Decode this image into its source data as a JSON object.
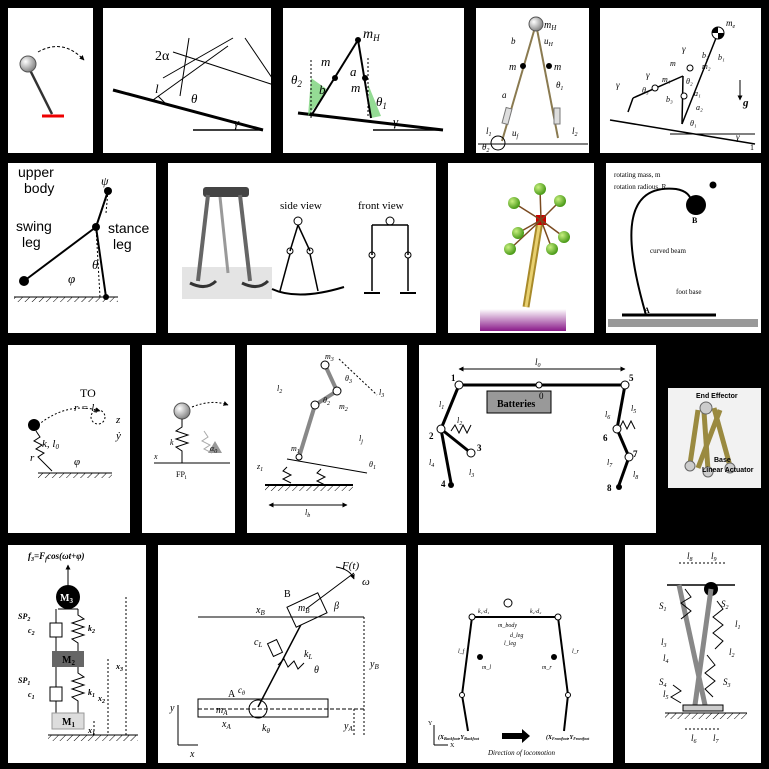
{
  "p2": {
    "angle_2a": "2α",
    "l": "l",
    "theta": "θ",
    "gamma": "γ"
  },
  "p3": {
    "mH": "m",
    "mH_sub": "H",
    "m_left": "m",
    "m_right": "m",
    "a": "a",
    "b": "b",
    "th2": "θ",
    "th2_sub": "2",
    "th1": "θ",
    "th1_sub": "1",
    "gamma": "γ"
  },
  "p4": {
    "mH": "m",
    "mH_sub": "H",
    "m_left": "m",
    "m_right": "m",
    "b": "b",
    "a": "a",
    "uH": "u",
    "uH_sub": "H",
    "th1": "θ",
    "th1_sub": "1",
    "l1": "l",
    "l1_sub": "1",
    "l2": "l",
    "l2_sub": "2",
    "uf": "u",
    "uf_sub": "f",
    "th2": "θ",
    "th2_sub": "2"
  },
  "p5": {
    "m_e": "m",
    "m_e_sub": "e",
    "g": "g",
    "gamma": "γ",
    "labels": [
      "θ₃",
      "θ₂",
      "m₂",
      "m₁",
      "b₃",
      "b₂",
      "a₂",
      "a₁",
      "b₁",
      "θ₁",
      "γ",
      "γ",
      "γ",
      "γ",
      "m"
    ],
    "one": "1"
  },
  "p6": {
    "upper_body": "upper",
    "upper_body2": "body",
    "psi": "ψ",
    "swing": "swing",
    "swing2": "leg",
    "stance": "stance",
    "stance2": "leg",
    "theta": "θ",
    "phi": "φ"
  },
  "p7": {
    "side": "side view",
    "front": "front view"
  },
  "p9": {
    "rot_mass": "rotating mass, m",
    "rot_radius": "rotation radious, R",
    "B": "B",
    "beam": "curved beam",
    "foot": "foot base",
    "A": "A"
  },
  "p10": {
    "TO": "TO",
    "r_eq": "r = l",
    "r_eq_sub": "0",
    "k_l0": "k, l",
    "k_l0_sub": "0",
    "r": "r",
    "phi": "φ",
    "z": "z",
    "y": "ẏ"
  },
  "p11": {
    "k": "k",
    "alpha": "α",
    "alpha_sub": "0",
    "x": "x",
    "FP": "FP",
    "FP_sub": "i"
  },
  "p12": {
    "m3": "m",
    "m3_sub": "3",
    "th3": "θ",
    "th3_sub": "3",
    "l3": "l",
    "l3_sub": "3",
    "l2": "l",
    "l2_sub": "2",
    "th2": "θ",
    "th2_sub": "2",
    "m2": "m",
    "m2_sub": "2",
    "lj": "l",
    "lj_sub": "j",
    "z1": "z",
    "z1_sub": "1",
    "th1": "θ",
    "th1_sub": "1",
    "m1": "m",
    "m1_sub": "1",
    "lb": "l",
    "lb_sub": "b"
  },
  "p13": {
    "l0": "l",
    "l0_sub": "0",
    "batteries": "Batteries",
    "zero": "0",
    "n1": "1",
    "n2": "2",
    "n3": "3",
    "n4": "4",
    "n5": "5",
    "n6": "6",
    "n7": "7",
    "n8": "8",
    "l1": "l",
    "l1_sub": "1",
    "l2": "l",
    "l2_sub": "2",
    "l3": "l",
    "l3_sub": "3",
    "l4": "l",
    "l4_sub": "4",
    "l5": "l",
    "l5_sub": "5",
    "l6": "l",
    "l6_sub": "6",
    "l7": "l",
    "l7_sub": "7",
    "l8": "l",
    "l8_sub": "8"
  },
  "p14": {
    "end": "End Effector",
    "base": "Base",
    "actuator": "Linear Actuator"
  },
  "p15": {
    "f3": "f",
    "f3_sub": "3",
    "f3_eq": "=F",
    "f3_eq_sub": "f",
    "f3_rest": "cos(ωt+φ)",
    "M3": "M",
    "M3_sub": "3",
    "SP2": "SP",
    "SP2_sub": "2",
    "c2": "c",
    "c2_sub": "2",
    "k2": "k",
    "k2_sub": "2",
    "M2": "M",
    "M2_sub": "2",
    "x3": "x",
    "x3_sub": "3",
    "SP1": "SP",
    "SP1_sub": "1",
    "c1": "c",
    "c1_sub": "1",
    "k1": "k",
    "k1_sub": "1",
    "x2": "x",
    "x2_sub": "2",
    "M1": "M",
    "M1_sub": "1",
    "x1": "x",
    "x1_sub": "1"
  },
  "p16": {
    "Ft": "F(t)",
    "omega": "ω",
    "B": "B",
    "mB": "m",
    "mB_sub": "B",
    "beta": "β",
    "xB": "x",
    "xB_sub": "B",
    "cL": "c",
    "cL_sub": "L",
    "kL": "k",
    "kL_sub": "L",
    "theta": "θ",
    "yB": "y",
    "yB_sub": "B",
    "ctheta": "c",
    "ctheta_sub": "θ",
    "A": "A",
    "mA": "m",
    "mA_sub": "A",
    "xA": "x",
    "xA_sub": "A",
    "ktheta": "k",
    "ktheta_sub": "θ",
    "yA": "y",
    "yA_sub": "A",
    "y": "y",
    "x": "x"
  },
  "p17": {
    "labels": [
      "k₁·d₁",
      "k₂·d₂",
      "m_body",
      "d_leg",
      "l_leg",
      "l_f",
      "l_r",
      "m_l",
      "m_r"
    ],
    "back": "(X",
    "back_sub": "Backfoot",
    "back_y": ",Y",
    "back_y_sub": "Backfoot",
    "front": "(X",
    "front_sub": "Frontfoot",
    "front_y": ",Y",
    "front_y_sub": "Frontfoot",
    "direction": "Direction of locomotion",
    "Y": "Y",
    "X": "X"
  },
  "p18": {
    "l8": "l",
    "l8_sub": "8",
    "l9": "l",
    "l9_sub": "9",
    "S1": "S",
    "S1_sub": "1",
    "S2": "S",
    "S2_sub": "2",
    "l1": "l",
    "l1_sub": "1",
    "l2": "l",
    "l2_sub": "2",
    "l3": "l",
    "l3_sub": "3",
    "l4": "l",
    "l4_sub": "4",
    "l5": "l",
    "l5_sub": "5",
    "S3": "S",
    "S3_sub": "3",
    "S4": "S",
    "S4_sub": "4",
    "l6": "l",
    "l6_sub": "6",
    "l7": "l",
    "l7_sub": "7"
  }
}
